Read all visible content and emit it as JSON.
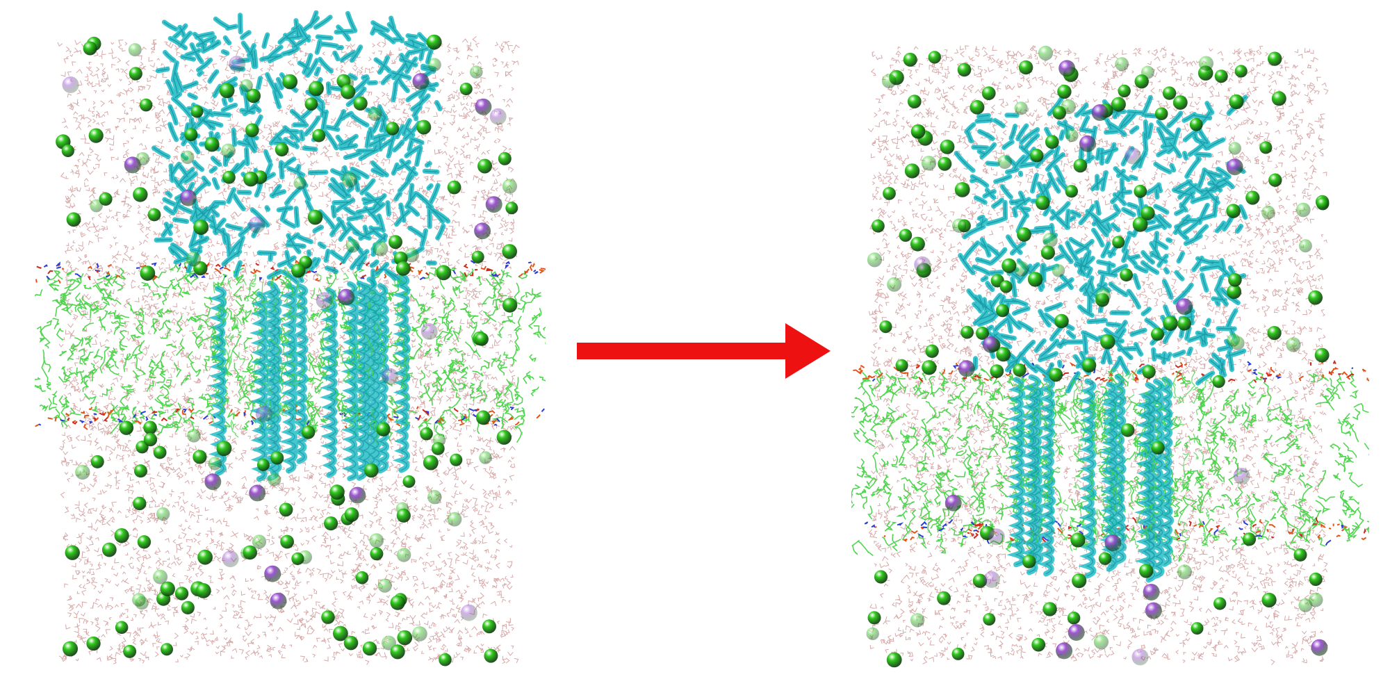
{
  "figure": {
    "description_free": true,
    "colors": {
      "background": "#ffffff",
      "water": "#c98a8a",
      "protein": "#16b9c4",
      "protein_dark": "#0e8f99",
      "lipid_tails": "#3fd23f",
      "lipid_heads_orange": "#e0561a",
      "lipid_heads_red": "#cc2a1e",
      "lipid_heads_blue": "#2a3bd6",
      "chloride_ion": "#33cc1f",
      "sodium_ion": "#9b4fd3",
      "arrow": "#ee1111"
    },
    "panels": [
      {
        "id": "initial-state",
        "icon": "membrane-protein-system"
      },
      {
        "id": "final-state",
        "icon": "membrane-protein-system"
      }
    ],
    "arrow_icon": "right-arrow-icon"
  }
}
